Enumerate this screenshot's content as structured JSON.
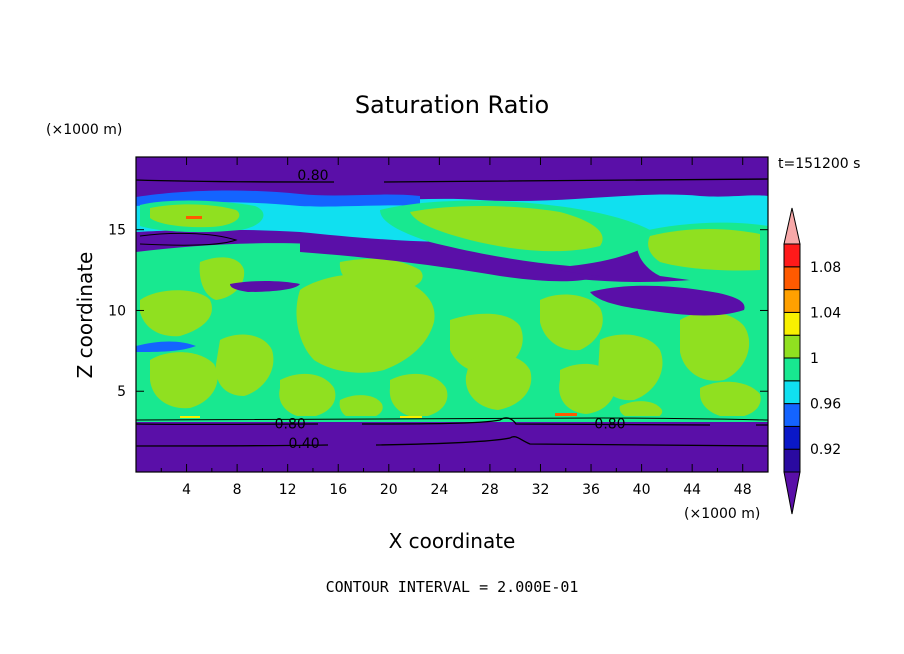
{
  "chart_data": {
    "type": "heatmap",
    "title": "Saturation Ratio",
    "xlabel": "X coordinate",
    "ylabel": "Z coordinate",
    "x_unit": "(×1000 m)",
    "y_unit": "(×1000 m)",
    "time_label": "t=151200 s",
    "footer": "CONTOUR INTERVAL = 2.000E-01",
    "xlim": [
      0,
      50
    ],
    "ylim": [
      0,
      19.5
    ],
    "x_ticks": [
      "4",
      "8",
      "12",
      "16",
      "20",
      "24",
      "28",
      "32",
      "36",
      "40",
      "44",
      "48"
    ],
    "x_tick_values": [
      4,
      8,
      12,
      16,
      20,
      24,
      28,
      32,
      36,
      40,
      44,
      48
    ],
    "y_ticks": [
      "5",
      "10",
      "15"
    ],
    "y_tick_values": [
      5,
      10,
      15
    ],
    "colorbar": {
      "levels": [
        0.9,
        0.92,
        0.94,
        0.96,
        0.98,
        1.0,
        1.02,
        1.04,
        1.06,
        1.08,
        1.1
      ],
      "labels": [
        "0.92",
        "0.96",
        "1",
        "1.04",
        "1.08"
      ],
      "label_values": [
        0.92,
        0.96,
        1.0,
        1.04,
        1.08
      ],
      "colors": [
        "#5a0fa8",
        "#2a0aa0",
        "#0a18c8",
        "#1464ff",
        "#10e0f0",
        "#18e890",
        "#90e020",
        "#f8f000",
        "#ffa000",
        "#ff5a00",
        "#ff1a1a"
      ],
      "over_color": "#f7a8a8",
      "under_color": "#5a0fa8"
    },
    "contour_labels": [
      {
        "text": "0.80",
        "x": 14,
        "y": 18.4
      },
      {
        "text": "0.80",
        "x": 12.2,
        "y": 3.0
      },
      {
        "text": "0.40",
        "x": 13.3,
        "y": 1.8
      },
      {
        "text": "0.80",
        "x": 37.5,
        "y": 3.0
      }
    ],
    "regions": [
      {
        "kind": "band",
        "y0": 0,
        "y1": 3.2,
        "color": "#5a0fa8"
      },
      {
        "kind": "band",
        "y0": 3.2,
        "y1": 7.5,
        "color": "#18e890"
      },
      {
        "kind": "band",
        "y0": 7.5,
        "y1": 14.8,
        "color": "#18e890"
      },
      {
        "kind": "band",
        "y0": 14.8,
        "y1": 16.2,
        "color": "#5a0fa8"
      },
      {
        "kind": "band",
        "y0": 16.2,
        "y1": 18.2,
        "color": "#18e890"
      },
      {
        "kind": "band",
        "y0": 18.2,
        "y1": 19.5,
        "color": "#5a0fa8"
      }
    ]
  }
}
